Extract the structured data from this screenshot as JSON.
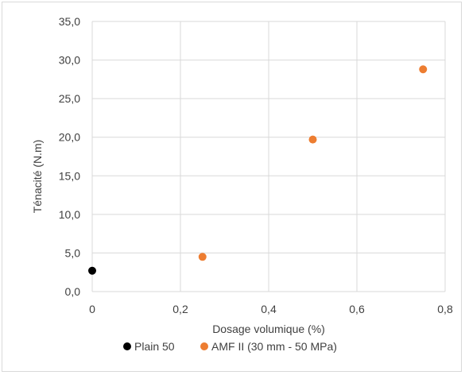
{
  "chart_data": {
    "type": "scatter",
    "title": "",
    "xlabel": "Dosage volumique (%)",
    "ylabel": "Ténacité (N.m)",
    "xlim": [
      0,
      0.8
    ],
    "ylim": [
      0,
      35
    ],
    "x_ticks": [
      0,
      0.2,
      0.4,
      0.6,
      0.8
    ],
    "x_tick_labels": [
      "0",
      "0,2",
      "0,4",
      "0,6",
      "0,8"
    ],
    "y_ticks": [
      0,
      5,
      10,
      15,
      20,
      25,
      30,
      35
    ],
    "y_tick_labels": [
      "0,0",
      "5,0",
      "10,0",
      "15,0",
      "20,0",
      "25,0",
      "30,0",
      "35,0"
    ],
    "grid": true,
    "legend_position": "bottom",
    "series": [
      {
        "name": "Plain 50",
        "color": "#000000",
        "points": [
          {
            "x": 0,
            "y": 2.7
          }
        ]
      },
      {
        "name": "AMF II (30 mm - 50 MPa)",
        "color": "#ed7d31",
        "points": [
          {
            "x": 0.25,
            "y": 4.5
          },
          {
            "x": 0.5,
            "y": 19.7
          },
          {
            "x": 0.75,
            "y": 28.8
          }
        ]
      }
    ]
  }
}
